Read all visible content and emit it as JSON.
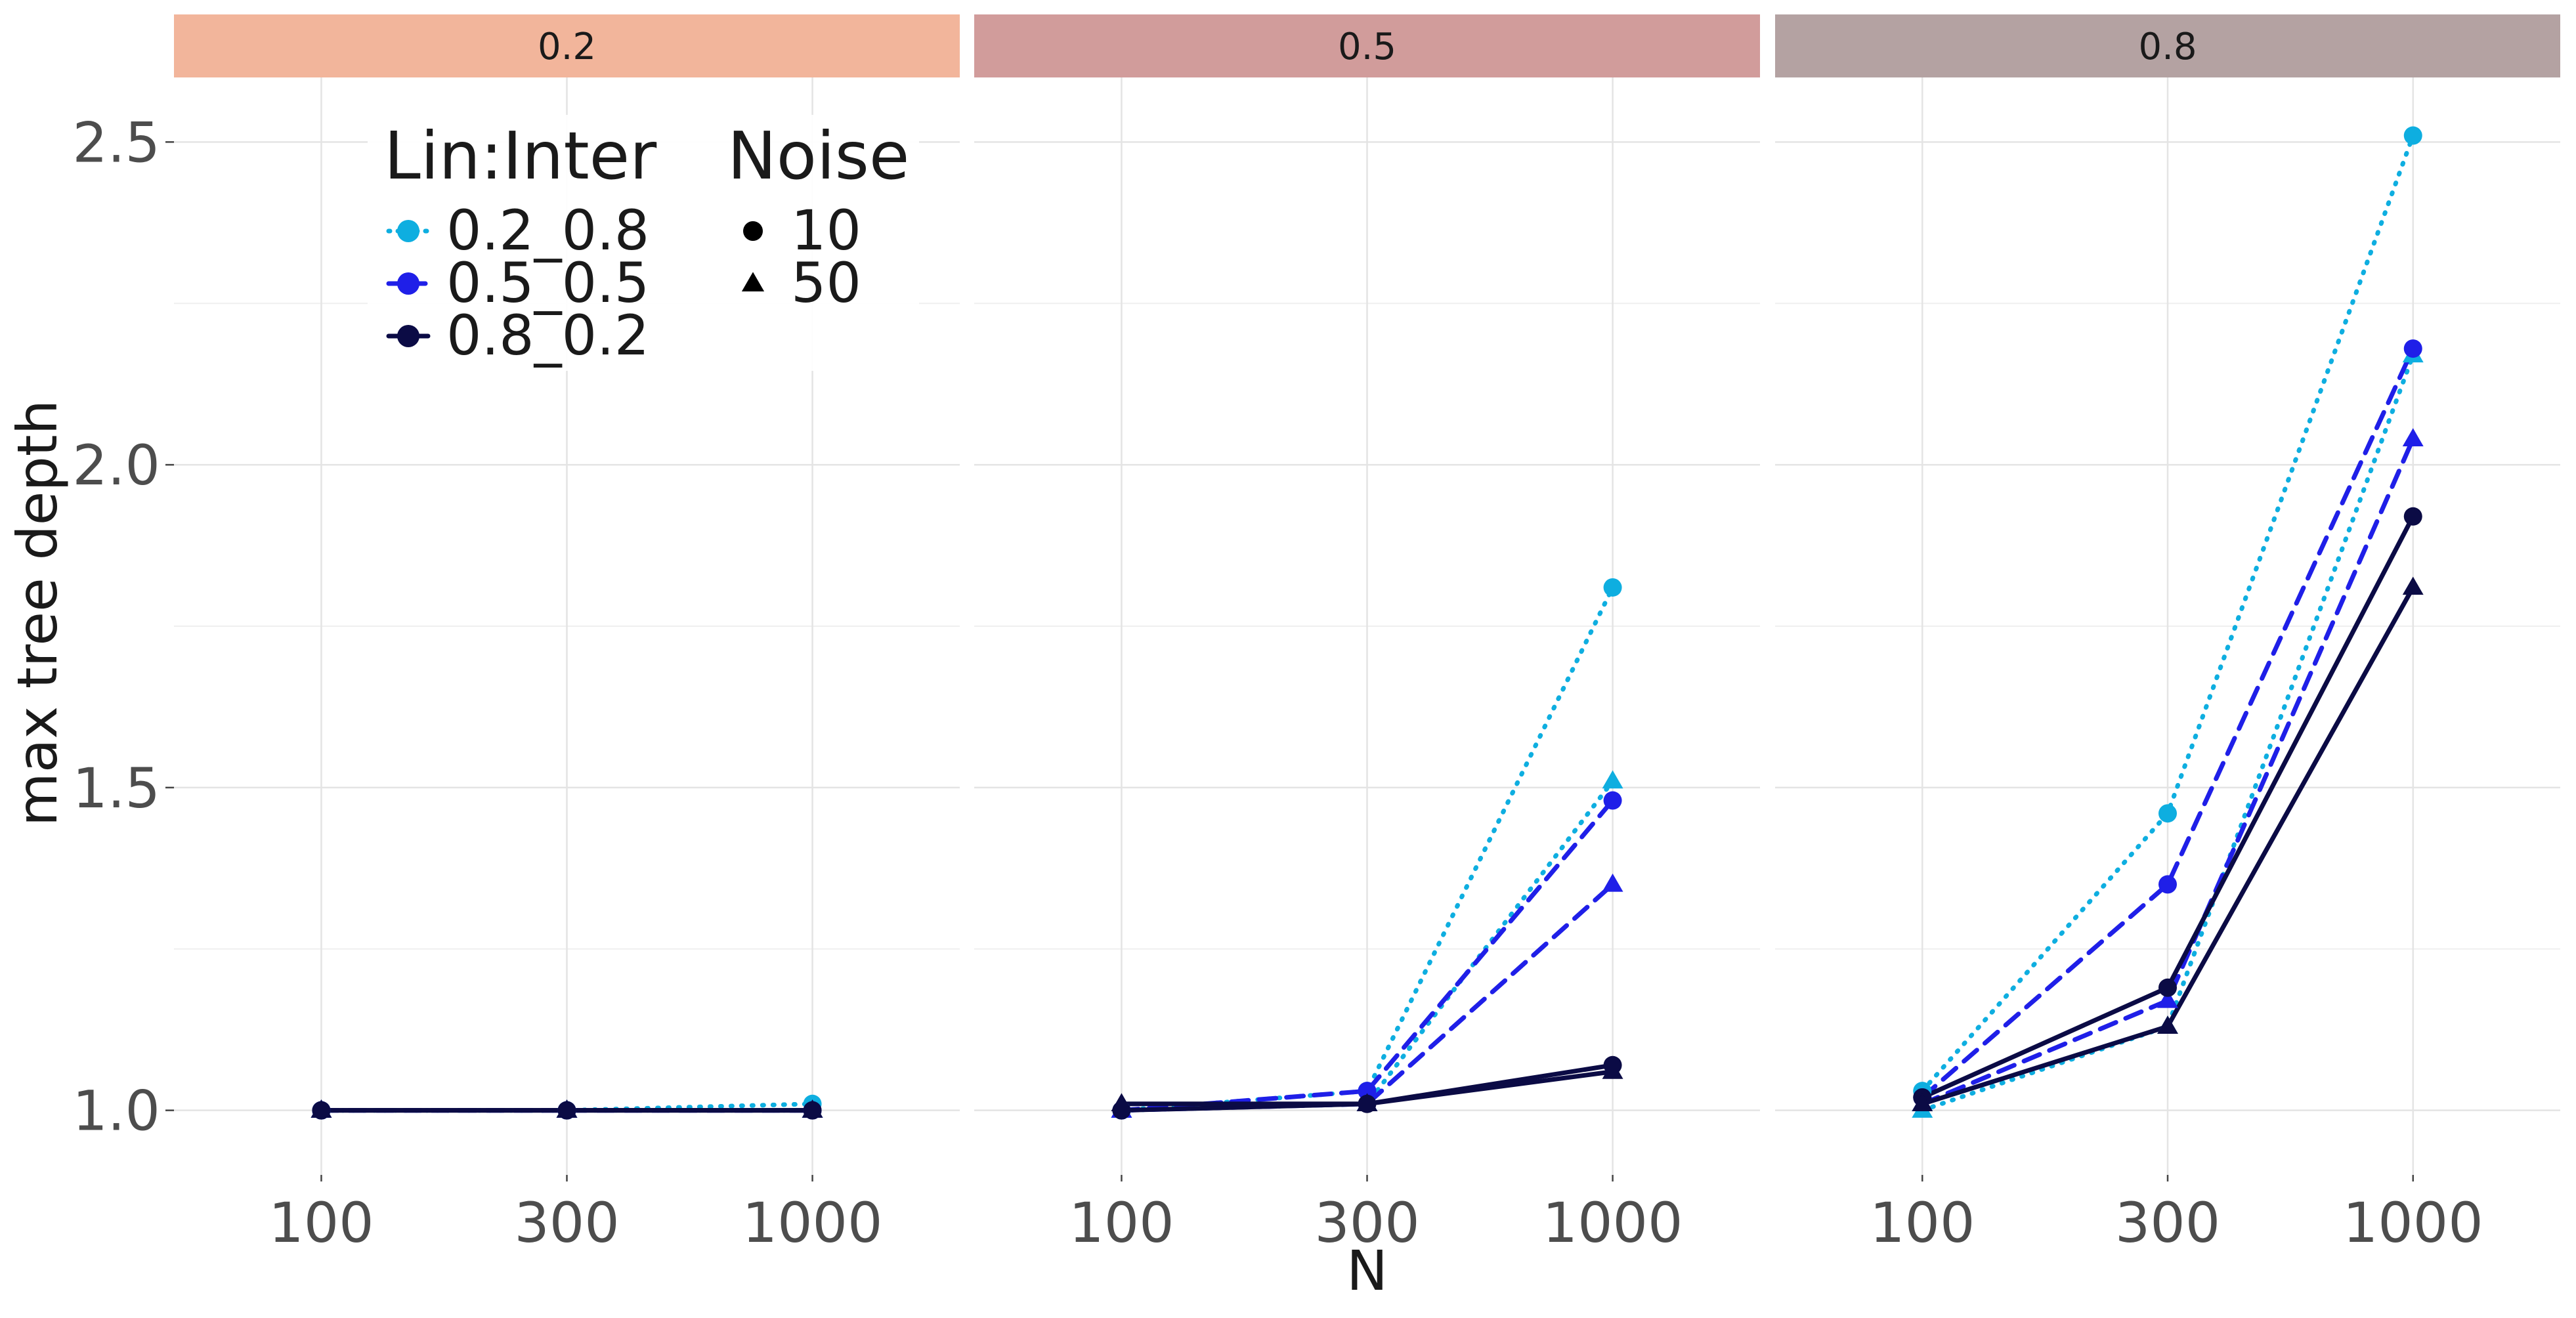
{
  "chart_data": {
    "type": "line",
    "facet_variable_values": [
      "0.2",
      "0.5",
      "0.8"
    ],
    "xlabel": "N",
    "ylabel": "max tree depth",
    "x_categories": [
      "100",
      "300",
      "1000"
    ],
    "ylim": [
      0.9,
      2.6
    ],
    "y_ticks": [
      1.0,
      1.5,
      2.0,
      2.5
    ],
    "y_tick_labels": [
      "1.0",
      "1.5",
      "2.0",
      "2.5"
    ],
    "grid": true,
    "legend": {
      "placement": "top-left inside first panel",
      "color_title": "Lin:Inter",
      "shape_title": "Noise",
      "color_entries": [
        {
          "label": "0.2_0.8",
          "color": "#0EAEE0",
          "linetype": "dotted"
        },
        {
          "label": "0.5_0.5",
          "color": "#1F1FE8",
          "linetype": "dashed"
        },
        {
          "label": "0.8_0.2",
          "color": "#0B0B45",
          "linetype": "solid"
        }
      ],
      "shape_entries": [
        {
          "label": "10",
          "shape": "circle"
        },
        {
          "label": "50",
          "shape": "triangle"
        }
      ]
    },
    "facet_colors": [
      "#F2B59B",
      "#D19C9B",
      "#B4A2A2"
    ],
    "panels": [
      {
        "facet": "0.2",
        "series": [
          {
            "lin_inter": "0.2_0.8",
            "noise": "10",
            "values": [
              1.0,
              1.0,
              1.01
            ]
          },
          {
            "lin_inter": "0.2_0.8",
            "noise": "50",
            "values": [
              1.0,
              1.0,
              1.0
            ]
          },
          {
            "lin_inter": "0.5_0.5",
            "noise": "10",
            "values": [
              1.0,
              1.0,
              1.0
            ]
          },
          {
            "lin_inter": "0.5_0.5",
            "noise": "50",
            "values": [
              1.0,
              1.0,
              1.0
            ]
          },
          {
            "lin_inter": "0.8_0.2",
            "noise": "10",
            "values": [
              1.0,
              1.0,
              1.0
            ]
          },
          {
            "lin_inter": "0.8_0.2",
            "noise": "50",
            "values": [
              1.0,
              1.0,
              1.0
            ]
          }
        ]
      },
      {
        "facet": "0.5",
        "series": [
          {
            "lin_inter": "0.2_0.8",
            "noise": "10",
            "values": [
              1.0,
              1.03,
              1.81
            ]
          },
          {
            "lin_inter": "0.2_0.8",
            "noise": "50",
            "values": [
              1.0,
              1.01,
              1.51
            ]
          },
          {
            "lin_inter": "0.5_0.5",
            "noise": "10",
            "values": [
              1.0,
              1.03,
              1.48
            ]
          },
          {
            "lin_inter": "0.5_0.5",
            "noise": "50",
            "values": [
              1.0,
              1.01,
              1.35
            ]
          },
          {
            "lin_inter": "0.8_0.2",
            "noise": "10",
            "values": [
              1.0,
              1.01,
              1.07
            ]
          },
          {
            "lin_inter": "0.8_0.2",
            "noise": "50",
            "values": [
              1.01,
              1.01,
              1.06
            ]
          }
        ]
      },
      {
        "facet": "0.8",
        "series": [
          {
            "lin_inter": "0.2_0.8",
            "noise": "10",
            "values": [
              1.03,
              1.46,
              2.51
            ]
          },
          {
            "lin_inter": "0.2_0.8",
            "noise": "50",
            "values": [
              1.0,
              1.13,
              2.17
            ]
          },
          {
            "lin_inter": "0.5_0.5",
            "noise": "10",
            "values": [
              1.02,
              1.35,
              2.18
            ]
          },
          {
            "lin_inter": "0.5_0.5",
            "noise": "50",
            "values": [
              1.01,
              1.17,
              2.04
            ]
          },
          {
            "lin_inter": "0.8_0.2",
            "noise": "10",
            "values": [
              1.02,
              1.19,
              1.92
            ]
          },
          {
            "lin_inter": "0.8_0.2",
            "noise": "50",
            "values": [
              1.01,
              1.13,
              1.81
            ]
          }
        ]
      }
    ]
  }
}
